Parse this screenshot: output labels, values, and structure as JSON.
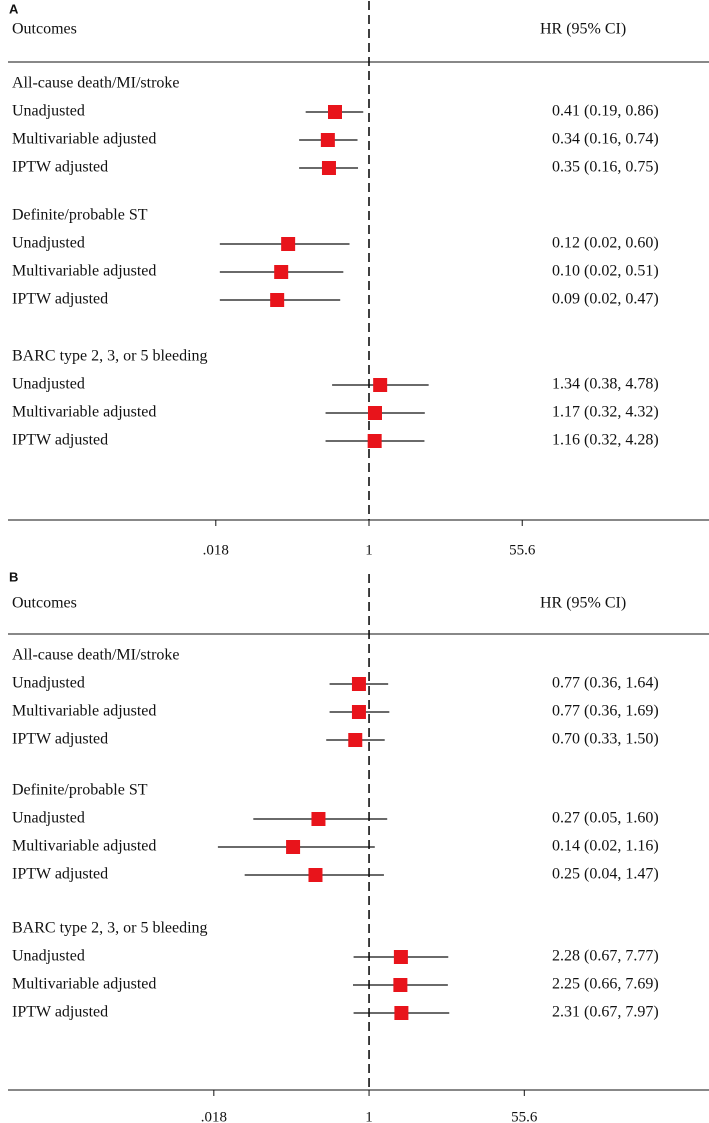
{
  "chart_data": [
    {
      "type": "forest",
      "panel": "A",
      "col_outcomes": "Outcomes",
      "col_hr": "HR (95% CI)",
      "x_scale": "log",
      "xlim": [
        0.0099,
        101
      ],
      "ref_line": 1,
      "x_ticks": [
        {
          "value": 0.018,
          "label": ".018"
        },
        {
          "value": 1,
          "label": "1"
        },
        {
          "value": 55.6,
          "label": "55.6"
        }
      ],
      "groups": [
        {
          "title": "All-cause death/MI/stroke",
          "rows": [
            {
              "label": "Unadjusted",
              "hr": 0.41,
              "lo": 0.19,
              "hi": 0.86,
              "text": "0.41 (0.19, 0.86)"
            },
            {
              "label": "Multivariable adjusted",
              "hr": 0.34,
              "lo": 0.16,
              "hi": 0.74,
              "text": "0.34 (0.16, 0.74)"
            },
            {
              "label": "IPTW adjusted",
              "hr": 0.35,
              "lo": 0.16,
              "hi": 0.75,
              "text": "0.35 (0.16, 0.75)"
            }
          ]
        },
        {
          "title": "Definite/probable ST",
          "rows": [
            {
              "label": "Unadjusted",
              "hr": 0.12,
              "lo": 0.02,
              "hi": 0.6,
              "text": "0.12 (0.02, 0.60)"
            },
            {
              "label": "Multivariable adjusted",
              "hr": 0.1,
              "lo": 0.02,
              "hi": 0.51,
              "text": "0.10 (0.02, 0.51)"
            },
            {
              "label": "IPTW adjusted",
              "hr": 0.09,
              "lo": 0.02,
              "hi": 0.47,
              "text": "0.09 (0.02, 0.47)"
            }
          ]
        },
        {
          "title": "BARC type 2, 3, or 5 bleeding",
          "rows": [
            {
              "label": "Unadjusted",
              "hr": 1.34,
              "lo": 0.38,
              "hi": 4.78,
              "text": "1.34 (0.38, 4.78)"
            },
            {
              "label": "Multivariable adjusted",
              "hr": 1.17,
              "lo": 0.32,
              "hi": 4.32,
              "text": "1.17 (0.32, 4.32)"
            },
            {
              "label": "IPTW adjusted",
              "hr": 1.16,
              "lo": 0.32,
              "hi": 4.28,
              "text": "1.16 (0.32, 4.28)"
            }
          ]
        }
      ]
    },
    {
      "type": "forest",
      "panel": "B",
      "col_outcomes": "Outcomes",
      "col_hr": "HR (95% CI)",
      "x_scale": "log",
      "xlim": [
        0.0105,
        95
      ],
      "ref_line": 1,
      "x_ticks": [
        {
          "value": 0.018,
          "label": ".018"
        },
        {
          "value": 1,
          "label": "1"
        },
        {
          "value": 55.6,
          "label": "55.6"
        }
      ],
      "groups": [
        {
          "title": "All-cause death/MI/stroke",
          "rows": [
            {
              "label": "Unadjusted",
              "hr": 0.77,
              "lo": 0.36,
              "hi": 1.64,
              "text": "0.77 (0.36, 1.64)"
            },
            {
              "label": "Multivariable adjusted",
              "hr": 0.77,
              "lo": 0.36,
              "hi": 1.69,
              "text": "0.77 (0.36, 1.69)"
            },
            {
              "label": "IPTW adjusted",
              "hr": 0.7,
              "lo": 0.33,
              "hi": 1.5,
              "text": "0.70 (0.33, 1.50)"
            }
          ]
        },
        {
          "title": "Definite/probable ST",
          "rows": [
            {
              "label": "Unadjusted",
              "hr": 0.27,
              "lo": 0.05,
              "hi": 1.6,
              "text": "0.27 (0.05, 1.60)"
            },
            {
              "label": "Multivariable adjusted",
              "hr": 0.14,
              "lo": 0.02,
              "hi": 1.16,
              "text": "0.14 (0.02, 1.16)"
            },
            {
              "label": "IPTW adjusted",
              "hr": 0.25,
              "lo": 0.04,
              "hi": 1.47,
              "text": "0.25 (0.04, 1.47)"
            }
          ]
        },
        {
          "title": "BARC type 2, 3, or 5 bleeding",
          "rows": [
            {
              "label": "Unadjusted",
              "hr": 2.28,
              "lo": 0.67,
              "hi": 7.77,
              "text": "2.28 (0.67, 7.77)"
            },
            {
              "label": "Multivariable adjusted",
              "hr": 2.25,
              "lo": 0.66,
              "hi": 7.69,
              "text": "2.25 (0.66, 7.69)"
            },
            {
              "label": "IPTW adjusted",
              "hr": 2.31,
              "lo": 0.67,
              "hi": 7.97,
              "text": "2.31 (0.67, 7.97)"
            }
          ]
        }
      ]
    }
  ],
  "colors": {
    "marker": "#e8141b",
    "line": "#111111",
    "axis": "#111111"
  }
}
